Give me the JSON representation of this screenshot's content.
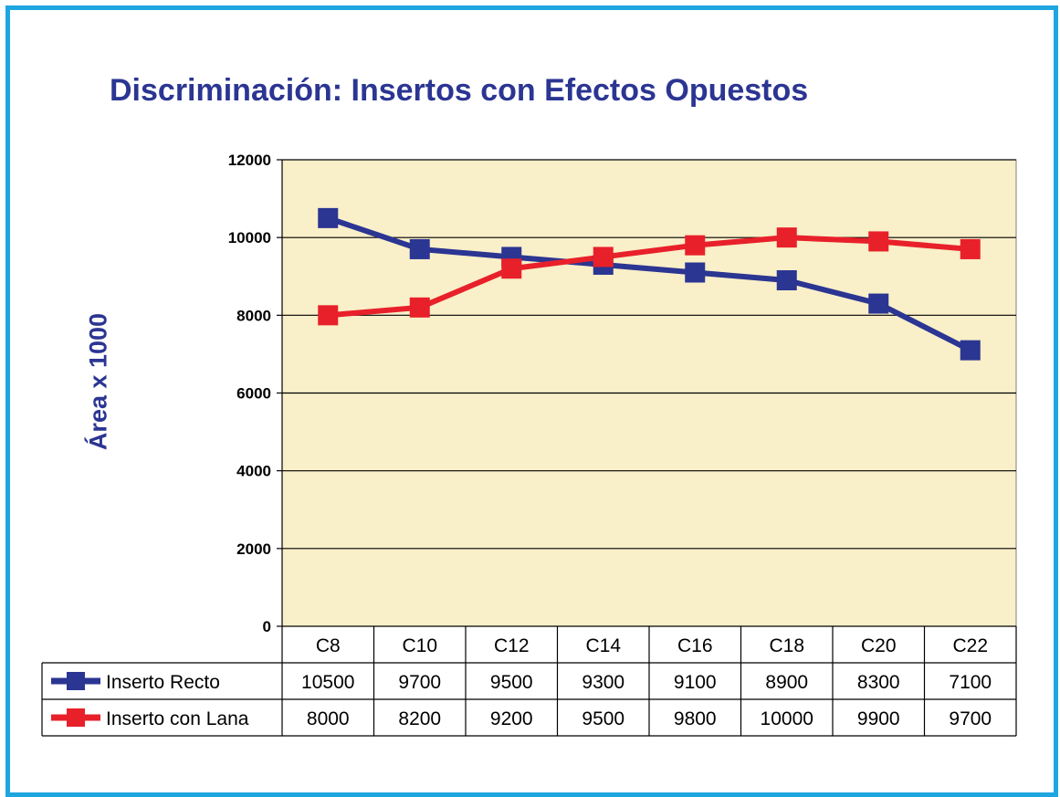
{
  "chart_data": {
    "type": "line",
    "title": "Discriminación: Insertos con Efectos Opuestos",
    "ylabel": "Área x 1000",
    "categories": [
      "C8",
      "C10",
      "C12",
      "C14",
      "C16",
      "C18",
      "C20",
      "C22"
    ],
    "ylim": [
      0,
      12000
    ],
    "yticks": [
      0,
      2000,
      4000,
      6000,
      8000,
      10000,
      12000
    ],
    "grid": true,
    "legend": "data-table",
    "series": [
      {
        "name": "Inserto Recto",
        "color": "#2b3592",
        "values": [
          10500,
          9700,
          9500,
          9300,
          9100,
          8900,
          8300,
          7100
        ]
      },
      {
        "name": "Inserto con Lana",
        "color": "#e8202a",
        "values": [
          8000,
          8200,
          9200,
          9500,
          9800,
          10000,
          9900,
          9700
        ]
      }
    ],
    "plot_background": "#f9efc9"
  }
}
